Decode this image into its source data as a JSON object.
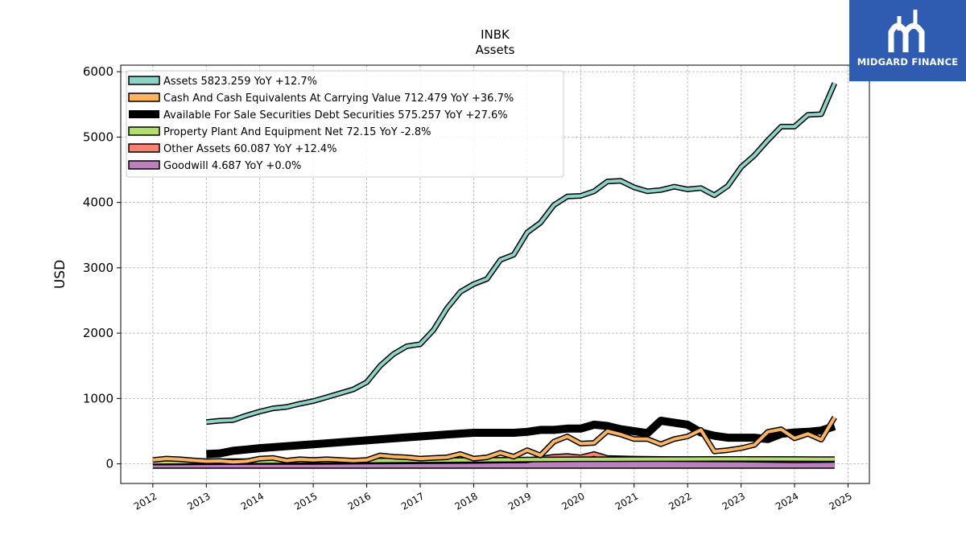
{
  "brand": {
    "name": "MIDGARD FINANCE",
    "bg": "#2f5bb0"
  },
  "chart_data": {
    "type": "line",
    "title": "INBK",
    "subtitle": "Assets",
    "ylabel": "USD",
    "xlim": [
      2011.4,
      2025.4
    ],
    "ylim": [
      -300,
      6100
    ],
    "yticks": [
      0,
      1000,
      2000,
      3000,
      4000,
      5000,
      6000
    ],
    "xticks": [
      2012,
      2013,
      2014,
      2015,
      2016,
      2017,
      2018,
      2019,
      2020,
      2021,
      2022,
      2023,
      2024,
      2025
    ],
    "grid": true,
    "legend_position": "top-left",
    "series": [
      {
        "name": "Assets  5823.259 YoY +12.7%",
        "color": "#8dd3c7",
        "linewidth": 4,
        "x": [
          2013.0,
          2013.25,
          2013.5,
          2013.75,
          2014.0,
          2014.25,
          2014.5,
          2014.75,
          2015.0,
          2015.25,
          2015.5,
          2015.75,
          2016.0,
          2016.25,
          2016.5,
          2016.75,
          2017.0,
          2017.25,
          2017.5,
          2017.75,
          2018.0,
          2018.25,
          2018.5,
          2018.75,
          2019.0,
          2019.25,
          2019.5,
          2019.75,
          2020.0,
          2020.25,
          2020.5,
          2020.75,
          2021.0,
          2021.25,
          2021.5,
          2021.75,
          2022.0,
          2022.25,
          2022.5,
          2022.75,
          2023.0,
          2023.25,
          2023.5,
          2023.75,
          2024.0,
          2024.25,
          2024.5,
          2024.75
        ],
        "y": [
          640,
          660,
          670,
          740,
          800,
          850,
          870,
          920,
          960,
          1020,
          1080,
          1140,
          1250,
          1500,
          1680,
          1800,
          1830,
          2050,
          2380,
          2630,
          2750,
          2830,
          3120,
          3200,
          3540,
          3690,
          3960,
          4090,
          4100,
          4170,
          4320,
          4330,
          4230,
          4170,
          4190,
          4240,
          4200,
          4220,
          4110,
          4250,
          4540,
          4720,
          4950,
          5160,
          5160,
          5340,
          5350,
          5823
        ]
      },
      {
        "name": "Cash And Cash Equivalents At Carrying Value  712.479 YoY +36.7%",
        "color": "#fdb462",
        "linewidth": 4,
        "x": [
          2012.0,
          2012.25,
          2012.5,
          2012.75,
          2013.0,
          2013.25,
          2013.5,
          2013.75,
          2014.0,
          2014.25,
          2014.5,
          2014.75,
          2015.0,
          2015.25,
          2015.5,
          2015.75,
          2016.0,
          2016.25,
          2016.5,
          2016.75,
          2017.0,
          2017.25,
          2017.5,
          2017.75,
          2018.0,
          2018.25,
          2018.5,
          2018.75,
          2019.0,
          2019.25,
          2019.5,
          2019.75,
          2020.0,
          2020.25,
          2020.5,
          2020.75,
          2021.0,
          2021.25,
          2021.5,
          2021.75,
          2022.0,
          2022.25,
          2022.5,
          2022.75,
          2023.0,
          2023.25,
          2023.5,
          2023.75,
          2024.0,
          2024.25,
          2024.5,
          2024.75
        ],
        "y": [
          60,
          80,
          70,
          55,
          40,
          45,
          30,
          40,
          80,
          90,
          50,
          70,
          60,
          70,
          60,
          50,
          60,
          130,
          110,
          100,
          80,
          90,
          100,
          150,
          80,
          100,
          170,
          110,
          210,
          130,
          340,
          420,
          310,
          320,
          500,
          450,
          380,
          380,
          300,
          380,
          420,
          520,
          190,
          210,
          240,
          290,
          490,
          530,
          390,
          460,
          370,
          712
        ]
      },
      {
        "name": "Available For Sale Securities Debt Securities  575.257 YoY +27.6%",
        "color": "#000000",
        "linewidth": 10,
        "x": [
          2013.0,
          2013.25,
          2013.5,
          2013.75,
          2014.0,
          2014.5,
          2015.0,
          2015.5,
          2016.0,
          2016.5,
          2017.0,
          2017.5,
          2018.0,
          2018.25,
          2018.5,
          2018.75,
          2019.0,
          2019.25,
          2019.5,
          2019.75,
          2020.0,
          2020.25,
          2020.5,
          2020.75,
          2021.0,
          2021.25,
          2021.5,
          2021.75,
          2022.0,
          2022.25,
          2022.5,
          2022.75,
          2023.0,
          2023.25,
          2023.5,
          2023.75,
          2024.0,
          2024.25,
          2024.5,
          2024.75
        ],
        "y": [
          150,
          160,
          200,
          220,
          240,
          270,
          300,
          330,
          360,
          390,
          420,
          450,
          475,
          475,
          475,
          475,
          490,
          520,
          520,
          540,
          540,
          600,
          580,
          530,
          500,
          470,
          660,
          630,
          600,
          480,
          430,
          400,
          400,
          400,
          380,
          460,
          480,
          490,
          510,
          575
        ]
      },
      {
        "name": "Property Plant And Equipment Net  72.15 YoY -2.8%",
        "color": "#b3de69",
        "linewidth": 4,
        "x": [
          2012.0,
          2013.0,
          2014.0,
          2015.0,
          2016.0,
          2017.0,
          2018.0,
          2019.0,
          2020.0,
          2021.0,
          2022.0,
          2023.0,
          2024.0,
          2024.75
        ],
        "y": [
          30,
          35,
          40,
          45,
          50,
          55,
          60,
          65,
          70,
          72,
          74,
          76,
          74,
          72
        ]
      },
      {
        "name": "Other Assets  60.087 YoY +12.4%",
        "color": "#fb8072",
        "linewidth": 4,
        "x": [
          2012.0,
          2013.0,
          2014.0,
          2015.0,
          2016.0,
          2017.0,
          2018.0,
          2019.0,
          2019.5,
          2019.75,
          2020.0,
          2020.25,
          2020.5,
          2021.0,
          2022.0,
          2023.0,
          2024.0,
          2024.75
        ],
        "y": [
          20,
          25,
          30,
          30,
          35,
          40,
          45,
          55,
          110,
          120,
          100,
          150,
          90,
          80,
          70,
          65,
          55,
          60
        ]
      },
      {
        "name": "Goodwill  4.687 YoY +0.0%",
        "color": "#bc80bd",
        "linewidth": 10,
        "x": [
          2012.0,
          2024.75
        ],
        "y": [
          4.687,
          4.687
        ]
      }
    ]
  }
}
